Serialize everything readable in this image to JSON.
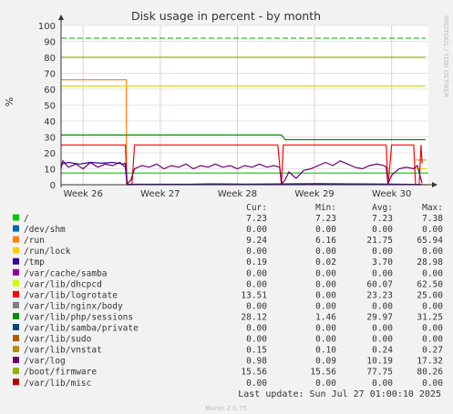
{
  "chart_data": {
    "type": "line",
    "title": "Disk usage in percent - by month",
    "ylabel": "%",
    "side_label": "RRDTOOL / TOBI OETIKER",
    "ylim": [
      0,
      100
    ],
    "yticks": [
      0,
      10,
      20,
      30,
      40,
      50,
      60,
      70,
      80,
      90,
      100
    ],
    "xticks": [
      "Week 26",
      "Week 27",
      "Week 28",
      "Week 29",
      "Week 30"
    ],
    "grid": true,
    "legend_headers": [
      "Cur:",
      "Min:",
      "Avg:",
      "Max:"
    ],
    "thresholds": [
      {
        "value": 92,
        "color": "#00aa00",
        "dashed": true
      },
      {
        "value": 80,
        "color": "#88aa00",
        "dashed": false
      },
      {
        "value": 62,
        "color": "#dddd00",
        "dashed": false
      }
    ],
    "series": [
      {
        "name": "/",
        "color": "#00cc00",
        "cur": "7.23",
        "min": "7.23",
        "avg": "7.23",
        "max": "7.38"
      },
      {
        "name": "/dev/shm",
        "color": "#0066b3",
        "cur": "0.00",
        "min": "0.00",
        "avg": "0.00",
        "max": "0.00"
      },
      {
        "name": "/run",
        "color": "#ff8000",
        "cur": "9.24",
        "min": "6.16",
        "avg": "21.75",
        "max": "65.94"
      },
      {
        "name": "/run/lock",
        "color": "#ffcc00",
        "cur": "0.00",
        "min": "0.00",
        "avg": "0.00",
        "max": "0.00"
      },
      {
        "name": "/tmp",
        "color": "#330099",
        "cur": "0.19",
        "min": "0.02",
        "avg": "3.70",
        "max": "28.98"
      },
      {
        "name": "/var/cache/samba",
        "color": "#990099",
        "cur": "0.00",
        "min": "0.00",
        "avg": "0.00",
        "max": "0.00"
      },
      {
        "name": "/var/lib/dhcpcd",
        "color": "#ccff00",
        "cur": "0.00",
        "min": "0.00",
        "avg": "60.07",
        "max": "62.50"
      },
      {
        "name": "/var/lib/logrotate",
        "color": "#ff0000",
        "cur": "13.51",
        "min": "0.00",
        "avg": "23.23",
        "max": "25.00"
      },
      {
        "name": "/var/lib/nginx/body",
        "color": "#808080",
        "cur": "0.00",
        "min": "0.00",
        "avg": "0.00",
        "max": "0.00"
      },
      {
        "name": "/var/lib/php/sessions",
        "color": "#008f00",
        "cur": "28.12",
        "min": "1.46",
        "avg": "29.97",
        "max": "31.25"
      },
      {
        "name": "/var/lib/samba/private",
        "color": "#00487d",
        "cur": "0.00",
        "min": "0.00",
        "avg": "0.00",
        "max": "0.00"
      },
      {
        "name": "/var/lib/sudo",
        "color": "#b35a00",
        "cur": "0.00",
        "min": "0.00",
        "avg": "0.00",
        "max": "0.00"
      },
      {
        "name": "/var/lib/vnstat",
        "color": "#b38f00",
        "cur": "0.15",
        "min": "0.10",
        "avg": "0.24",
        "max": "0.27"
      },
      {
        "name": "/var/log",
        "color": "#6b006b",
        "cur": "0.98",
        "min": "0.09",
        "avg": "10.19",
        "max": "17.32"
      },
      {
        "name": "/boot/firmware",
        "color": "#8fb300",
        "cur": "15.56",
        "min": "15.56",
        "avg": "77.75",
        "max": "80.26"
      },
      {
        "name": "/var/lib/misc",
        "color": "#b30000",
        "cur": "0.00",
        "min": "0.00",
        "avg": "0.00",
        "max": "0.00"
      }
    ],
    "lines": {
      "/": {
        "color": "#00cc00",
        "points": [
          [
            0,
            7.3
          ],
          [
            1,
            7.3
          ]
        ]
      },
      "/run": {
        "color": "#ff8000",
        "points": [
          [
            0,
            65.9
          ],
          [
            0.178,
            65.9
          ],
          [
            0.178,
            0
          ],
          [
            1,
            0
          ]
        ]
      },
      "/boot/firmware": {
        "color": "#8fb300",
        "points": [
          [
            0,
            80
          ],
          [
            0.992,
            80
          ]
        ]
      },
      "/var/lib/dhcpcd": {
        "color": "#dddd00",
        "points": [
          [
            0,
            62
          ],
          [
            0.992,
            62
          ]
        ]
      },
      "/var/lib/php/sessions": {
        "color": "#008f00",
        "points": [
          [
            0,
            31.2
          ],
          [
            0.6,
            31.2
          ],
          [
            0.61,
            28.3
          ],
          [
            0.992,
            28.3
          ]
        ]
      },
      "/var/lib/logrotate": {
        "color": "#ff0000",
        "points": [
          [
            0,
            25
          ],
          [
            0.175,
            25
          ],
          [
            0.18,
            0
          ],
          [
            0.193,
            0
          ],
          [
            0.2,
            25
          ],
          [
            0.59,
            25
          ],
          [
            0.6,
            0
          ],
          [
            0.605,
            25
          ],
          [
            0.885,
            25
          ],
          [
            0.89,
            0
          ],
          [
            0.9,
            25
          ],
          [
            0.96,
            25
          ],
          [
            0.965,
            0
          ],
          [
            0.975,
            0
          ],
          [
            0.98,
            25
          ],
          [
            0.983,
            13.5
          ]
        ]
      },
      "/var/log": {
        "color": "#6b006b",
        "points": [
          [
            0,
            10
          ],
          [
            0.005,
            15
          ],
          [
            0.02,
            11
          ],
          [
            0.04,
            13
          ],
          [
            0.06,
            10
          ],
          [
            0.08,
            14
          ],
          [
            0.1,
            11
          ],
          [
            0.12,
            13
          ],
          [
            0.14,
            12
          ],
          [
            0.16,
            14
          ],
          [
            0.175,
            11
          ],
          [
            0.18,
            0.5
          ],
          [
            0.19,
            3
          ],
          [
            0.2,
            10
          ],
          [
            0.22,
            12
          ],
          [
            0.24,
            11
          ],
          [
            0.26,
            13
          ],
          [
            0.28,
            10
          ],
          [
            0.3,
            12
          ],
          [
            0.32,
            11
          ],
          [
            0.34,
            13
          ],
          [
            0.36,
            10
          ],
          [
            0.38,
            12
          ],
          [
            0.4,
            11
          ],
          [
            0.42,
            13
          ],
          [
            0.44,
            11
          ],
          [
            0.46,
            12
          ],
          [
            0.48,
            10
          ],
          [
            0.5,
            12
          ],
          [
            0.52,
            11
          ],
          [
            0.54,
            13
          ],
          [
            0.56,
            11
          ],
          [
            0.58,
            12
          ],
          [
            0.595,
            11
          ],
          [
            0.6,
            0.5
          ],
          [
            0.61,
            3
          ],
          [
            0.62,
            8
          ],
          [
            0.64,
            4
          ],
          [
            0.66,
            9
          ],
          [
            0.68,
            10
          ],
          [
            0.7,
            12
          ],
          [
            0.72,
            14
          ],
          [
            0.74,
            12
          ],
          [
            0.76,
            15
          ],
          [
            0.78,
            13
          ],
          [
            0.8,
            11
          ],
          [
            0.82,
            10
          ],
          [
            0.84,
            12
          ],
          [
            0.86,
            13
          ],
          [
            0.88,
            12
          ],
          [
            0.885,
            11
          ],
          [
            0.89,
            0.5
          ],
          [
            0.9,
            6
          ],
          [
            0.92,
            10
          ],
          [
            0.94,
            11
          ],
          [
            0.96,
            10
          ],
          [
            0.97,
            12
          ],
          [
            0.983,
            1
          ]
        ]
      },
      "/tmp": {
        "color": "#330099",
        "points": [
          [
            0,
            13
          ],
          [
            0.02,
            14
          ],
          [
            0.05,
            13
          ],
          [
            0.08,
            14
          ],
          [
            0.11,
            13.5
          ],
          [
            0.14,
            14
          ],
          [
            0.17,
            13
          ],
          [
            0.175,
            13.5
          ],
          [
            0.18,
            0.3
          ],
          [
            0.35,
            0.3
          ],
          [
            0.4,
            0.5
          ],
          [
            0.5,
            0.4
          ],
          [
            0.6,
            0.5
          ],
          [
            0.7,
            0.6
          ],
          [
            0.8,
            0.5
          ],
          [
            0.9,
            0.4
          ],
          [
            0.983,
            0.2
          ]
        ]
      }
    },
    "thresholds_after_gap": [
      {
        "color": "#88aa00",
        "value": 15.5
      },
      {
        "color": "#dddd00",
        "value": 10
      }
    ]
  },
  "footer": {
    "last_update": "Last update: Sun Jul 27 01:00:10 2025",
    "generator": "Munin 2.0.75"
  }
}
